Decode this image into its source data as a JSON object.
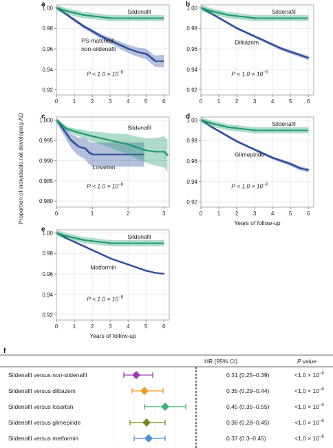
{
  "figure": {
    "ylabel": "Proportion of individuals not developing AD",
    "xlabel": "Years of follow-up"
  },
  "colors": {
    "sildenafil": "#1e9a6c",
    "comparator": "#2c4a9c",
    "grid": "#e6e6e6",
    "panel_border": "#9a9a9a"
  },
  "chart_data": [
    {
      "type": "line",
      "panel_letter": "a",
      "x_ticks": [
        "0",
        "1",
        "2",
        "3",
        "4",
        "5",
        "6"
      ],
      "xlim": [
        0,
        6.3
      ],
      "y_ticks": [
        "1.00",
        "0.98",
        "0.96",
        "0.94",
        "0.92"
      ],
      "ylim": [
        0.915,
        1.003
      ],
      "xlabel": "",
      "ylabel": "",
      "pvalue": "P < 1.0 × 10",
      "pvalue_exp": "−8",
      "series": [
        {
          "name": "Sildenafil",
          "role": "sildenafil",
          "ci": 0.003,
          "x": [
            0,
            0.5,
            1,
            1.5,
            2,
            2.5,
            3,
            3.5,
            4,
            4.5,
            5,
            5.5,
            6
          ],
          "y": [
            1.0,
            0.997,
            0.995,
            0.993,
            0.992,
            0.991,
            0.99,
            0.99,
            0.99,
            0.99,
            0.99,
            0.99,
            0.99
          ]
        },
        {
          "name": "PS-matched non-sildenafil",
          "role": "comparator",
          "ci": [
            0.0005,
            0.0015,
            0.002,
            0.003,
            0.004,
            0.005,
            0.006
          ],
          "ci_x": [
            0,
            1,
            2,
            3,
            4,
            5,
            6
          ],
          "x": [
            0,
            0.5,
            1,
            1.5,
            2,
            2.5,
            3,
            3.5,
            4,
            4.5,
            5,
            5.5,
            6
          ],
          "y": [
            1.0,
            0.994,
            0.988,
            0.982,
            0.977,
            0.972,
            0.968,
            0.964,
            0.96,
            0.957,
            0.955,
            0.948,
            0.948
          ]
        }
      ],
      "labels": [
        {
          "text": "Sildenafil",
          "role": "label_top"
        },
        {
          "text": "PS-matched",
          "role": "label_mid1"
        },
        {
          "text": "non-sildenafil",
          "role": "label_mid2"
        }
      ]
    },
    {
      "type": "line",
      "panel_letter": "b",
      "x_ticks": [
        "0",
        "1",
        "2",
        "3",
        "4",
        "5",
        "6"
      ],
      "xlim": [
        0,
        6.3
      ],
      "y_ticks": [
        "1.00",
        "0.98",
        "0.96",
        "0.94",
        "0.92"
      ],
      "ylim": [
        0.915,
        1.003
      ],
      "xlabel": "",
      "ylabel": "",
      "pvalue": "P < 1.0 × 10",
      "pvalue_exp": "−8",
      "series": [
        {
          "name": "Sildenafil",
          "role": "sildenafil",
          "ci": 0.003,
          "x": [
            0,
            0.5,
            1,
            1.5,
            2,
            2.5,
            3,
            3.5,
            4,
            4.5,
            5,
            5.5,
            6
          ],
          "y": [
            1.0,
            0.997,
            0.995,
            0.993,
            0.992,
            0.991,
            0.99,
            0.99,
            0.99,
            0.99,
            0.99,
            0.99,
            0.99
          ]
        },
        {
          "name": "Diltiazem",
          "role": "comparator",
          "ci": [
            0.0003,
            0.0008,
            0.001,
            0.0012,
            0.0015,
            0.0018,
            0.002
          ],
          "ci_x": [
            0,
            1,
            2,
            3,
            4,
            5,
            6
          ],
          "x": [
            0,
            0.5,
            1,
            1.5,
            2,
            2.5,
            3,
            3.5,
            4,
            4.5,
            5,
            5.5,
            6
          ],
          "y": [
            1.0,
            0.995,
            0.99,
            0.985,
            0.98,
            0.976,
            0.972,
            0.968,
            0.964,
            0.96,
            0.957,
            0.954,
            0.951
          ]
        }
      ],
      "labels": [
        {
          "text": "Sildenafil",
          "role": "label_top"
        },
        {
          "text": "Diltiazem",
          "role": "label_mid1"
        }
      ]
    },
    {
      "type": "line",
      "panel_letter": "c",
      "x_ticks": [
        "0",
        "1",
        "2",
        "3"
      ],
      "xlim": [
        0,
        3.15
      ],
      "y_ticks": [
        "1.000",
        "0.995",
        "0.990",
        "0.985",
        "0.980"
      ],
      "ylim": [
        0.9785,
        1.0008
      ],
      "xlabel": "",
      "ylabel": "",
      "pvalue": "P < 1.0 × 10",
      "pvalue_exp": "−8",
      "series": [
        {
          "name": "Sildenafil",
          "role": "sildenafil",
          "ci": [
            0.0003,
            0.0008,
            0.0012,
            0.0018,
            0.0025,
            0.003,
            0.004
          ],
          "ci_x": [
            0,
            0.5,
            1,
            1.5,
            2,
            2.5,
            3.1
          ],
          "x": [
            0,
            0.25,
            0.5,
            0.75,
            1,
            1.25,
            1.5,
            1.75,
            2,
            2.25,
            2.5,
            2.75,
            3,
            3.1
          ],
          "y": [
            1.0,
            0.998,
            0.9972,
            0.9966,
            0.996,
            0.9955,
            0.995,
            0.9945,
            0.994,
            0.9932,
            0.9925,
            0.9922,
            0.9922,
            0.9912
          ]
        },
        {
          "name": "Losartan",
          "role": "comparator",
          "ci": [
            0.0005,
            0.002,
            0.003,
            0.003,
            0.003,
            0.003
          ],
          "ci_x": [
            0,
            0.5,
            1,
            1.5,
            2,
            2.45
          ],
          "x": [
            0,
            0.2,
            0.4,
            0.6,
            0.8,
            0.9,
            1.0,
            1.5,
            2.0,
            2.45
          ],
          "y": [
            1.0,
            0.9975,
            0.995,
            0.9935,
            0.993,
            0.992,
            0.9915,
            0.9915,
            0.9915,
            0.9915
          ]
        }
      ],
      "labels": [
        {
          "text": "Sildenafil",
          "role": "label_top"
        },
        {
          "text": "Losartan",
          "role": "label_mid1"
        }
      ]
    },
    {
      "type": "line",
      "panel_letter": "d",
      "x_ticks": [
        "0",
        "1",
        "2",
        "3",
        "4",
        "5",
        "6"
      ],
      "xlim": [
        0,
        6.3
      ],
      "y_ticks": [
        "1.00",
        "0.98",
        "0.96",
        "0.94",
        "0.92"
      ],
      "ylim": [
        0.915,
        1.003
      ],
      "xlabel": "Years of follow-up",
      "ylabel": "",
      "pvalue": "P < 1.0 × 10",
      "pvalue_exp": "−8",
      "series": [
        {
          "name": "Sildenafil",
          "role": "sildenafil",
          "ci": 0.003,
          "x": [
            0,
            0.5,
            1,
            1.5,
            2,
            2.5,
            3,
            3.5,
            4,
            4.5,
            5,
            5.5,
            6
          ],
          "y": [
            1.0,
            0.997,
            0.995,
            0.993,
            0.992,
            0.991,
            0.99,
            0.99,
            0.99,
            0.99,
            0.99,
            0.99,
            0.99
          ]
        },
        {
          "name": "Glimepiride",
          "role": "comparator",
          "ci": [
            0.0003,
            0.0008,
            0.001,
            0.0012,
            0.0015,
            0.0018,
            0.002
          ],
          "ci_x": [
            0,
            1,
            2,
            3,
            4,
            5,
            6
          ],
          "x": [
            0,
            0.5,
            1,
            1.5,
            2,
            2.5,
            3,
            3.5,
            4,
            4.5,
            5,
            5.5,
            6
          ],
          "y": [
            1.0,
            0.994,
            0.989,
            0.984,
            0.979,
            0.975,
            0.971,
            0.967,
            0.963,
            0.96,
            0.957,
            0.953,
            0.951
          ]
        }
      ],
      "labels": [
        {
          "text": "Sildenafil",
          "role": "label_top"
        },
        {
          "text": "Glimepiride",
          "role": "label_mid1"
        }
      ]
    },
    {
      "type": "line",
      "panel_letter": "e",
      "x_ticks": [
        "0",
        "1",
        "2",
        "3",
        "4",
        "5",
        "6"
      ],
      "xlim": [
        0,
        6.3
      ],
      "y_ticks": [
        "1.00",
        "0.98",
        "0.96",
        "0.94",
        "0.92"
      ],
      "ylim": [
        0.915,
        1.003
      ],
      "xlabel": "Years of follow-up",
      "ylabel": "",
      "pvalue": "P < 1.0 × 10",
      "pvalue_exp": "−8",
      "series": [
        {
          "name": "Sildenafil",
          "role": "sildenafil",
          "ci": 0.003,
          "x": [
            0,
            0.5,
            1,
            1.5,
            2,
            2.5,
            3,
            3.5,
            4,
            4.5,
            5,
            5.5,
            6
          ],
          "y": [
            1.0,
            0.997,
            0.995,
            0.993,
            0.992,
            0.991,
            0.99,
            0.99,
            0.99,
            0.99,
            0.99,
            0.99,
            0.99
          ]
        },
        {
          "name": "Metformin",
          "role": "comparator",
          "ci": [
            0.0002,
            0.0004,
            0.0005,
            0.0006,
            0.0007,
            0.0008,
            0.001
          ],
          "ci_x": [
            0,
            1,
            2,
            3,
            4,
            5,
            6
          ],
          "x": [
            0,
            0.5,
            1,
            1.5,
            2,
            2.5,
            3,
            3.5,
            4,
            4.5,
            5,
            5.5,
            6
          ],
          "y": [
            1.0,
            0.995,
            0.991,
            0.987,
            0.983,
            0.979,
            0.975,
            0.972,
            0.969,
            0.966,
            0.963,
            0.961,
            0.96
          ]
        }
      ],
      "labels": [
        {
          "text": "Sildenafil",
          "role": "label_top"
        },
        {
          "text": "Metformin",
          "role": "label_mid1"
        }
      ]
    },
    {
      "type": "forest",
      "panel_letter": "f",
      "header_hr": "HR (95% CI)",
      "header_p": "P value",
      "xlim": [
        0.15,
        0.75
      ],
      "reference": 0.6,
      "rows": [
        {
          "label": "Sildenafil versus non-sildenafil",
          "hr": 0.31,
          "lo": 0.25,
          "hi": 0.39,
          "hr_text": "0.31 (0.25–0.39)",
          "p_text": "<1.0 × 10",
          "p_exp": "−8",
          "color": "#9b3fb0"
        },
        {
          "label": "Sildenafil versus diltiazem",
          "hr": 0.35,
          "lo": 0.29,
          "hi": 0.44,
          "hr_text": "0.35 (0.29–0.44)",
          "p_text": "<1.0 × 10",
          "p_exp": "−8",
          "color": "#f29a1f"
        },
        {
          "label": "Sildenafil versus losartan",
          "hr": 0.45,
          "lo": 0.35,
          "hi": 0.55,
          "hr_text": "0.45 (0.35–0.55)",
          "p_text": "<1.0 × 10",
          "p_exp": "−8",
          "color": "#3fb37c"
        },
        {
          "label": "Sildenafil versus glimepiride",
          "hr": 0.36,
          "lo": 0.28,
          "hi": 0.45,
          "hr_text": "0.36 (0.28–0.45)",
          "p_text": "<1.0 × 10",
          "p_exp": "−8",
          "color": "#7a8a1c"
        },
        {
          "label": "Sildenafil versus metformin",
          "hr": 0.37,
          "lo": 0.3,
          "hi": 0.45,
          "hr_text": "0.37 (0.3–0.45)",
          "p_text": "<1.0 × 10",
          "p_exp": "−8",
          "color": "#4a8fd6"
        }
      ]
    }
  ]
}
